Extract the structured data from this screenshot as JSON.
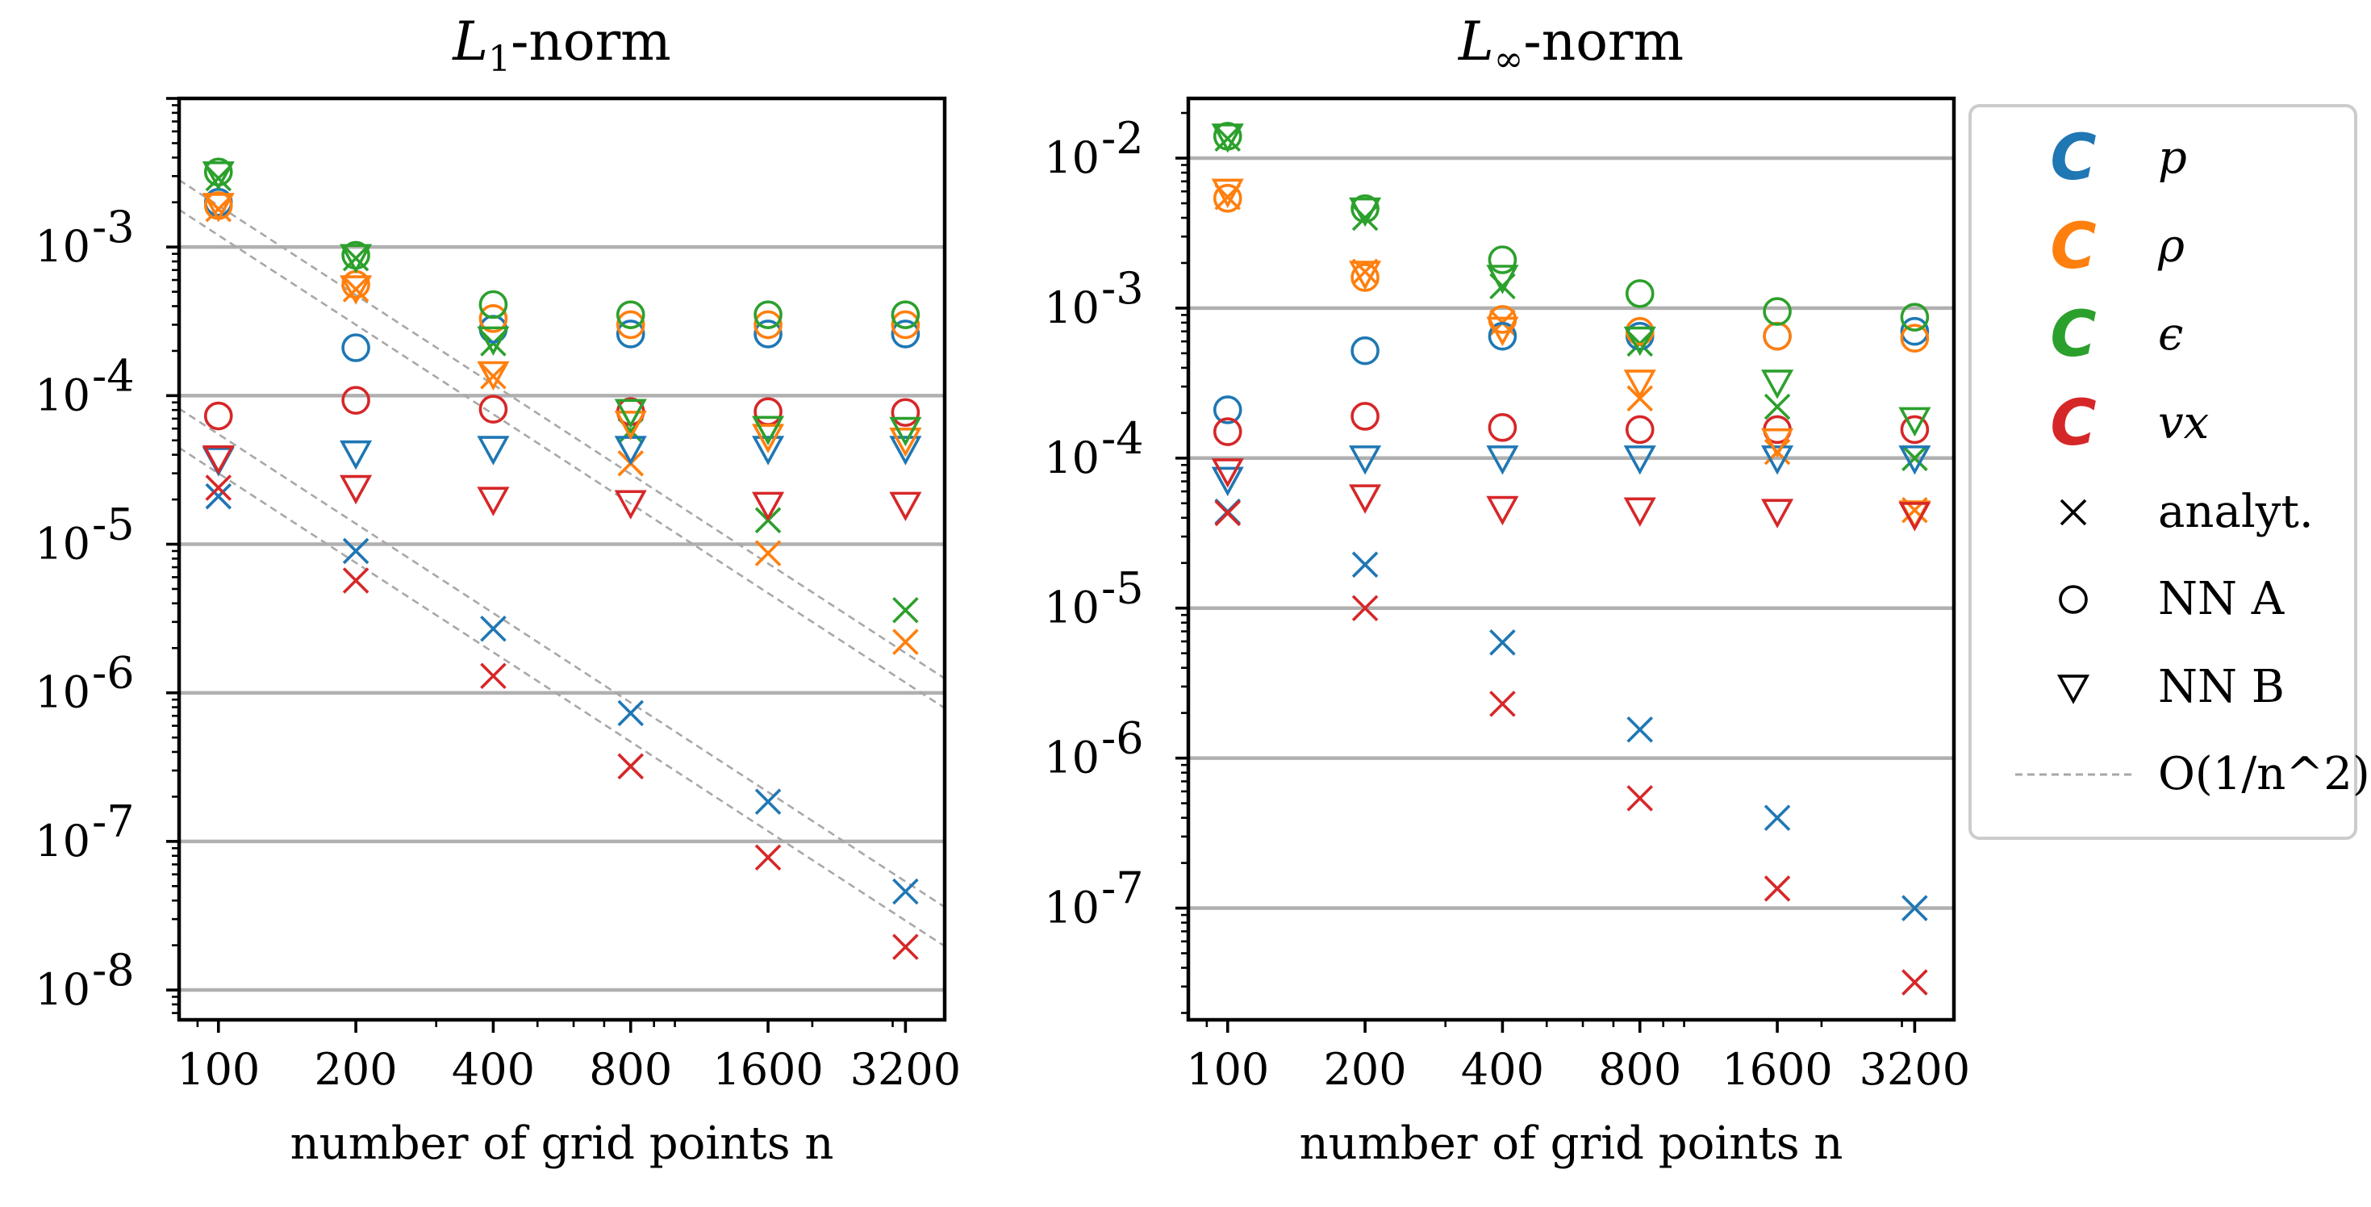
{
  "chart_data": [
    {
      "type": "scatter",
      "title": "L1-norm",
      "title_main": "L",
      "title_sub": "1",
      "title_rest": "-norm",
      "xlabel": "number of grid points n",
      "xscale": "log",
      "yscale": "log",
      "xlim": [
        82,
        3900
      ],
      "ylim": [
        6.3e-09,
        0.01
      ],
      "xticks": [
        100,
        200,
        400,
        800,
        1600,
        3200
      ],
      "xtick_labels": [
        "100",
        "200",
        "400",
        "800",
        "1600",
        "3200"
      ],
      "yticks": [
        1e-08,
        1e-07,
        1e-06,
        1e-05,
        0.0001,
        0.001
      ],
      "ytick_exponents": [
        "-8",
        "-7",
        "-6",
        "-5",
        "-4",
        "-3"
      ],
      "grid": "horizontal at decades",
      "reference_lines": [
        {
          "name": "O(1/n^2)",
          "c": 12.0
        },
        {
          "name": "O(1/n^2)",
          "c": 19.0
        },
        {
          "name": "O(1/n^2)",
          "c": 0.3
        },
        {
          "name": "O(1/n^2)",
          "c": 0.55
        }
      ],
      "series": [
        {
          "name": "p",
          "marker": "analyt.",
          "color": "#1f77b4",
          "x": [
            100,
            200,
            400,
            800,
            1600,
            3200
          ],
          "y": [
            2.1e-05,
            9e-06,
            2.7e-06,
            7.3e-07,
            1.85e-07,
            4.6e-08
          ]
        },
        {
          "name": "rho",
          "marker": "analyt.",
          "color": "#ff7f0e",
          "x": [
            100,
            200,
            400,
            800,
            1600,
            3200
          ],
          "y": [
            0.0018,
            0.00052,
            0.000135,
            3.5e-05,
            8.7e-06,
            2.2e-06
          ]
        },
        {
          "name": "epsilon",
          "marker": "analyt.",
          "color": "#2ca02c",
          "x": [
            100,
            200,
            400,
            800,
            1600,
            3200
          ],
          "y": [
            0.0029,
            0.00084,
            0.000225,
            5.8e-05,
            1.45e-05,
            3.6e-06
          ]
        },
        {
          "name": "v_x",
          "marker": "analyt.",
          "color": "#d62728",
          "x": [
            100,
            200,
            400,
            800,
            1600,
            3200
          ],
          "y": [
            2.4e-05,
            5.7e-06,
            1.3e-06,
            3.2e-07,
            7.8e-08,
            1.95e-08
          ]
        },
        {
          "name": "p",
          "marker": "NN A",
          "color": "#1f77b4",
          "x": [
            100,
            200,
            400,
            800,
            1600,
            3200
          ],
          "y": [
            0.002,
            0.00021,
            0.00028,
            0.00026,
            0.00026,
            0.00026
          ]
        },
        {
          "name": "rho",
          "marker": "NN A",
          "color": "#ff7f0e",
          "x": [
            100,
            200,
            400,
            800,
            1600,
            3200
          ],
          "y": [
            0.0019,
            0.00056,
            0.00033,
            0.0003,
            0.0003,
            0.0003
          ]
        },
        {
          "name": "epsilon",
          "marker": "NN A",
          "color": "#2ca02c",
          "x": [
            100,
            200,
            400,
            800,
            1600,
            3200
          ],
          "y": [
            0.0032,
            0.00088,
            0.00041,
            0.00035,
            0.00035,
            0.00035
          ]
        },
        {
          "name": "v_x",
          "marker": "NN A",
          "color": "#d62728",
          "x": [
            100,
            200,
            400,
            800,
            1600,
            3200
          ],
          "y": [
            7.3e-05,
            9.3e-05,
            8.1e-05,
            7.8e-05,
            7.8e-05,
            7.7e-05
          ]
        },
        {
          "name": "p",
          "marker": "NN B",
          "color": "#1f77b4",
          "x": [
            100,
            200,
            400,
            800,
            1600,
            3200
          ],
          "y": [
            3.7e-05,
            4.1e-05,
            4.4e-05,
            4.4e-05,
            4.4e-05,
            4.4e-05
          ]
        },
        {
          "name": "rho",
          "marker": "NN B",
          "color": "#ff7f0e",
          "x": [
            100,
            200,
            400,
            800,
            1600,
            3200
          ],
          "y": [
            0.0019,
            0.00053,
            0.00014,
            6.5e-05,
            5.3e-05,
            5e-05
          ]
        },
        {
          "name": "epsilon",
          "marker": "NN B",
          "color": "#2ca02c",
          "x": [
            100,
            200,
            400,
            800,
            1600,
            3200
          ],
          "y": [
            0.0031,
            0.00086,
            0.00024,
            7.8e-05,
            6e-05,
            5.9e-05
          ]
        },
        {
          "name": "v_x",
          "marker": "NN B",
          "color": "#d62728",
          "x": [
            100,
            200,
            400,
            800,
            1600,
            3200
          ],
          "y": [
            3.8e-05,
            2.4e-05,
            2e-05,
            1.9e-05,
            1.85e-05,
            1.85e-05
          ]
        }
      ]
    },
    {
      "type": "scatter",
      "title": "L∞-norm",
      "title_main": "L",
      "title_sub": "∞",
      "title_rest": "-norm",
      "xlabel": "number of grid points n",
      "xscale": "log",
      "yscale": "log",
      "xlim": [
        82,
        3900
      ],
      "ylim": [
        1.8e-08,
        0.025
      ],
      "xticks": [
        100,
        200,
        400,
        800,
        1600,
        3200
      ],
      "xtick_labels": [
        "100",
        "200",
        "400",
        "800",
        "1600",
        "3200"
      ],
      "yticks": [
        1e-07,
        1e-06,
        1e-05,
        0.0001,
        0.001,
        0.01
      ],
      "ytick_exponents": [
        "-7",
        "-6",
        "-5",
        "-4",
        "-3",
        "-2"
      ],
      "grid": "horizontal at decades",
      "series": [
        {
          "name": "p",
          "marker": "analyt.",
          "color": "#1f77b4",
          "x": [
            100,
            200,
            400,
            800,
            1600,
            3200
          ],
          "y": [
            4.4e-05,
            1.95e-05,
            5.9e-06,
            1.55e-06,
            4e-07,
            1e-07
          ]
        },
        {
          "name": "rho",
          "marker": "analyt.",
          "color": "#ff7f0e",
          "x": [
            100,
            200,
            400,
            800,
            1600,
            3200
          ],
          "y": [
            0.0055,
            0.00175,
            0.0008,
            0.00025,
            0.00011,
            4.5e-05
          ]
        },
        {
          "name": "epsilon",
          "marker": "analyt.",
          "color": "#2ca02c",
          "x": [
            100,
            200,
            400,
            800,
            1600,
            3200
          ],
          "y": [
            0.0135,
            0.004,
            0.0014,
            0.00058,
            0.00022,
            0.0001
          ]
        },
        {
          "name": "v_x",
          "marker": "analyt.",
          "color": "#d62728",
          "x": [
            100,
            200,
            400,
            800,
            1600,
            3200
          ],
          "y": [
            4.3e-05,
            1e-05,
            2.3e-06,
            5.4e-07,
            1.35e-07,
            3.2e-08
          ]
        },
        {
          "name": "p",
          "marker": "NN A",
          "color": "#1f77b4",
          "x": [
            100,
            200,
            400,
            800,
            1600,
            3200
          ],
          "y": [
            0.00021,
            0.00052,
            0.00065,
            0.00065,
            0.00065,
            0.0007
          ]
        },
        {
          "name": "rho",
          "marker": "NN A",
          "color": "#ff7f0e",
          "x": [
            100,
            200,
            400,
            800,
            1600,
            3200
          ],
          "y": [
            0.0054,
            0.0016,
            0.00084,
            0.0007,
            0.00065,
            0.00063
          ]
        },
        {
          "name": "epsilon",
          "marker": "NN A",
          "color": "#2ca02c",
          "x": [
            100,
            200,
            400,
            800,
            1600,
            3200
          ],
          "y": [
            0.014,
            0.0046,
            0.0021,
            0.00125,
            0.00095,
            0.00087
          ]
        },
        {
          "name": "v_x",
          "marker": "NN A",
          "color": "#d62728",
          "x": [
            100,
            200,
            400,
            800,
            1600,
            3200
          ],
          "y": [
            0.00015,
            0.00019,
            0.00016,
            0.000155,
            0.000155,
            0.000155
          ]
        },
        {
          "name": "p",
          "marker": "NN B",
          "color": "#1f77b4",
          "x": [
            100,
            200,
            400,
            800,
            1600,
            3200
          ],
          "y": [
            7.2e-05,
            0.0001,
            0.0001,
            0.0001,
            0.0001,
            0.0001
          ]
        },
        {
          "name": "rho",
          "marker": "NN B",
          "color": "#ff7f0e",
          "x": [
            100,
            200,
            400,
            800,
            1600,
            3200
          ],
          "y": [
            0.006,
            0.0017,
            0.00072,
            0.00032,
            0.00013,
            4.3e-05
          ]
        },
        {
          "name": "epsilon",
          "marker": "NN B",
          "color": "#2ca02c",
          "x": [
            100,
            200,
            400,
            800,
            1600,
            3200
          ],
          "y": [
            0.014,
            0.0045,
            0.0016,
            0.00062,
            0.00032,
            0.00018
          ]
        },
        {
          "name": "v_x",
          "marker": "NN B",
          "color": "#d62728",
          "x": [
            100,
            200,
            400,
            800,
            1600,
            3200
          ],
          "y": [
            8.2e-05,
            5.5e-05,
            4.6e-05,
            4.5e-05,
            4.4e-05,
            4.2e-05
          ]
        }
      ]
    }
  ],
  "legend": {
    "placement": "right, outside plots",
    "entries": [
      {
        "kind": "color",
        "symbol": "C",
        "color": "#1f77b4",
        "label": "p"
      },
      {
        "kind": "color",
        "symbol": "C",
        "color": "#ff7f0e",
        "label": "ρ"
      },
      {
        "kind": "color",
        "symbol": "C",
        "color": "#2ca02c",
        "label": "ϵ"
      },
      {
        "kind": "color",
        "symbol": "C",
        "color": "#d62728",
        "label": "vx"
      },
      {
        "kind": "marker",
        "marker": "analyt.",
        "label": "analyt."
      },
      {
        "kind": "marker",
        "marker": "NN A",
        "label": "NN A"
      },
      {
        "kind": "marker",
        "marker": "NN B",
        "label": "NN B"
      },
      {
        "kind": "line",
        "label": "O(1/n^2)"
      }
    ]
  },
  "colors": {
    "p": "#1f77b4",
    "rho": "#ff7f0e",
    "epsilon": "#2ca02c",
    "v_x": "#d62728",
    "grid": "#b0b0b0",
    "reference_line": "#a8a8a8"
  }
}
